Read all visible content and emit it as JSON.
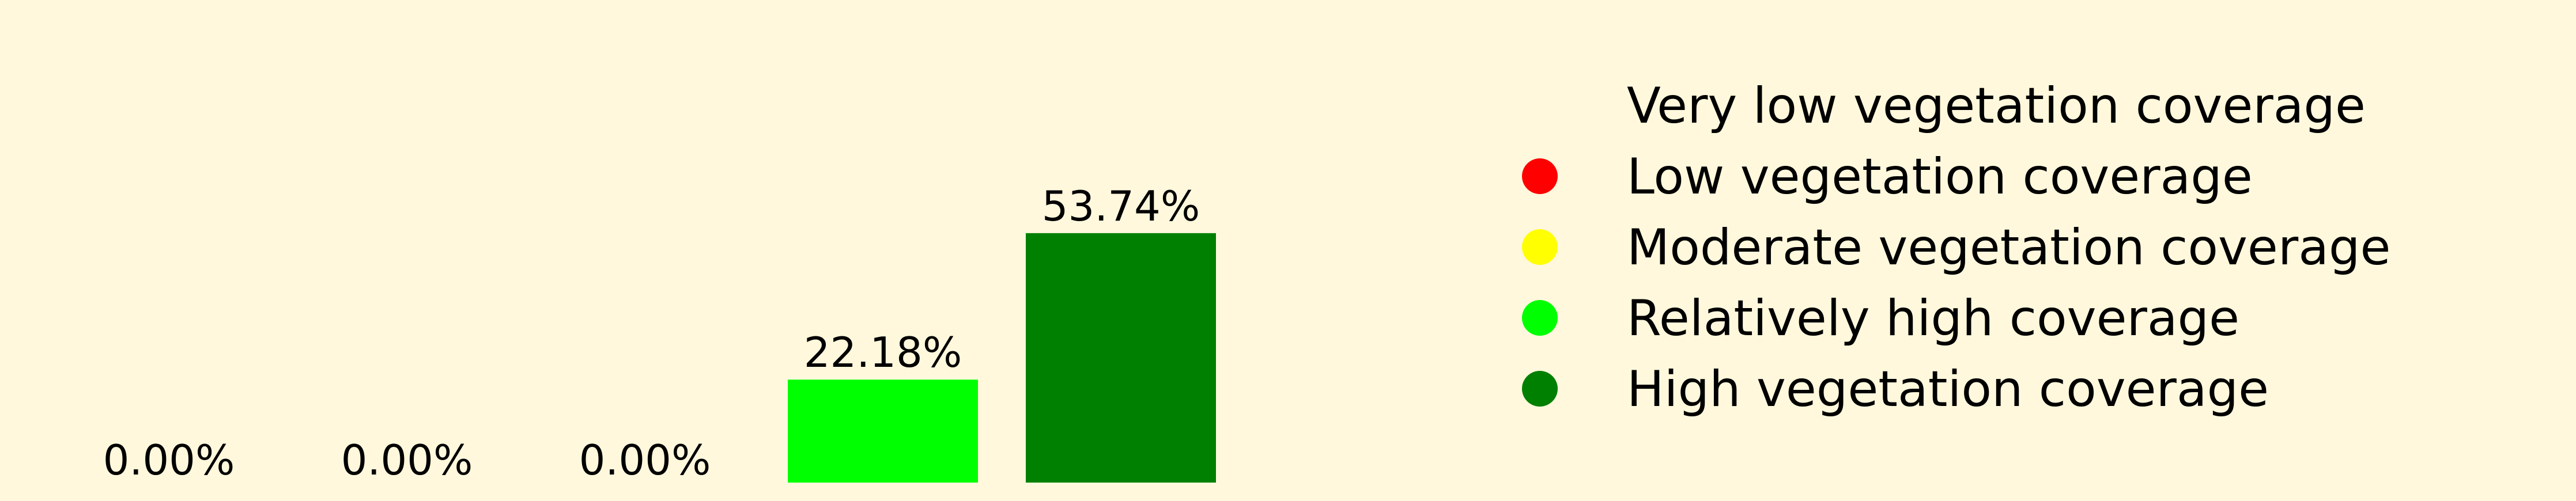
{
  "chart_data": {
    "type": "bar",
    "categories": [
      "Very low vegetation coverage",
      "Low vegetation coverage",
      "Moderate vegetation coverage",
      "Relatively high coverage",
      "High vegetation coverage"
    ],
    "values": [
      0.0,
      0.0,
      0.0,
      22.18,
      53.74
    ],
    "data_labels": [
      "0.00%",
      "0.00%",
      "0.00%",
      "22.18%",
      "53.74%"
    ],
    "colors": [
      "#FFF8DC",
      "#FF0000",
      "#FFFF00",
      "#00FF00",
      "#008000"
    ],
    "unit": "%",
    "axes_visible": false,
    "grid": false,
    "legend_position": "right",
    "background": "#FFF8DC"
  }
}
